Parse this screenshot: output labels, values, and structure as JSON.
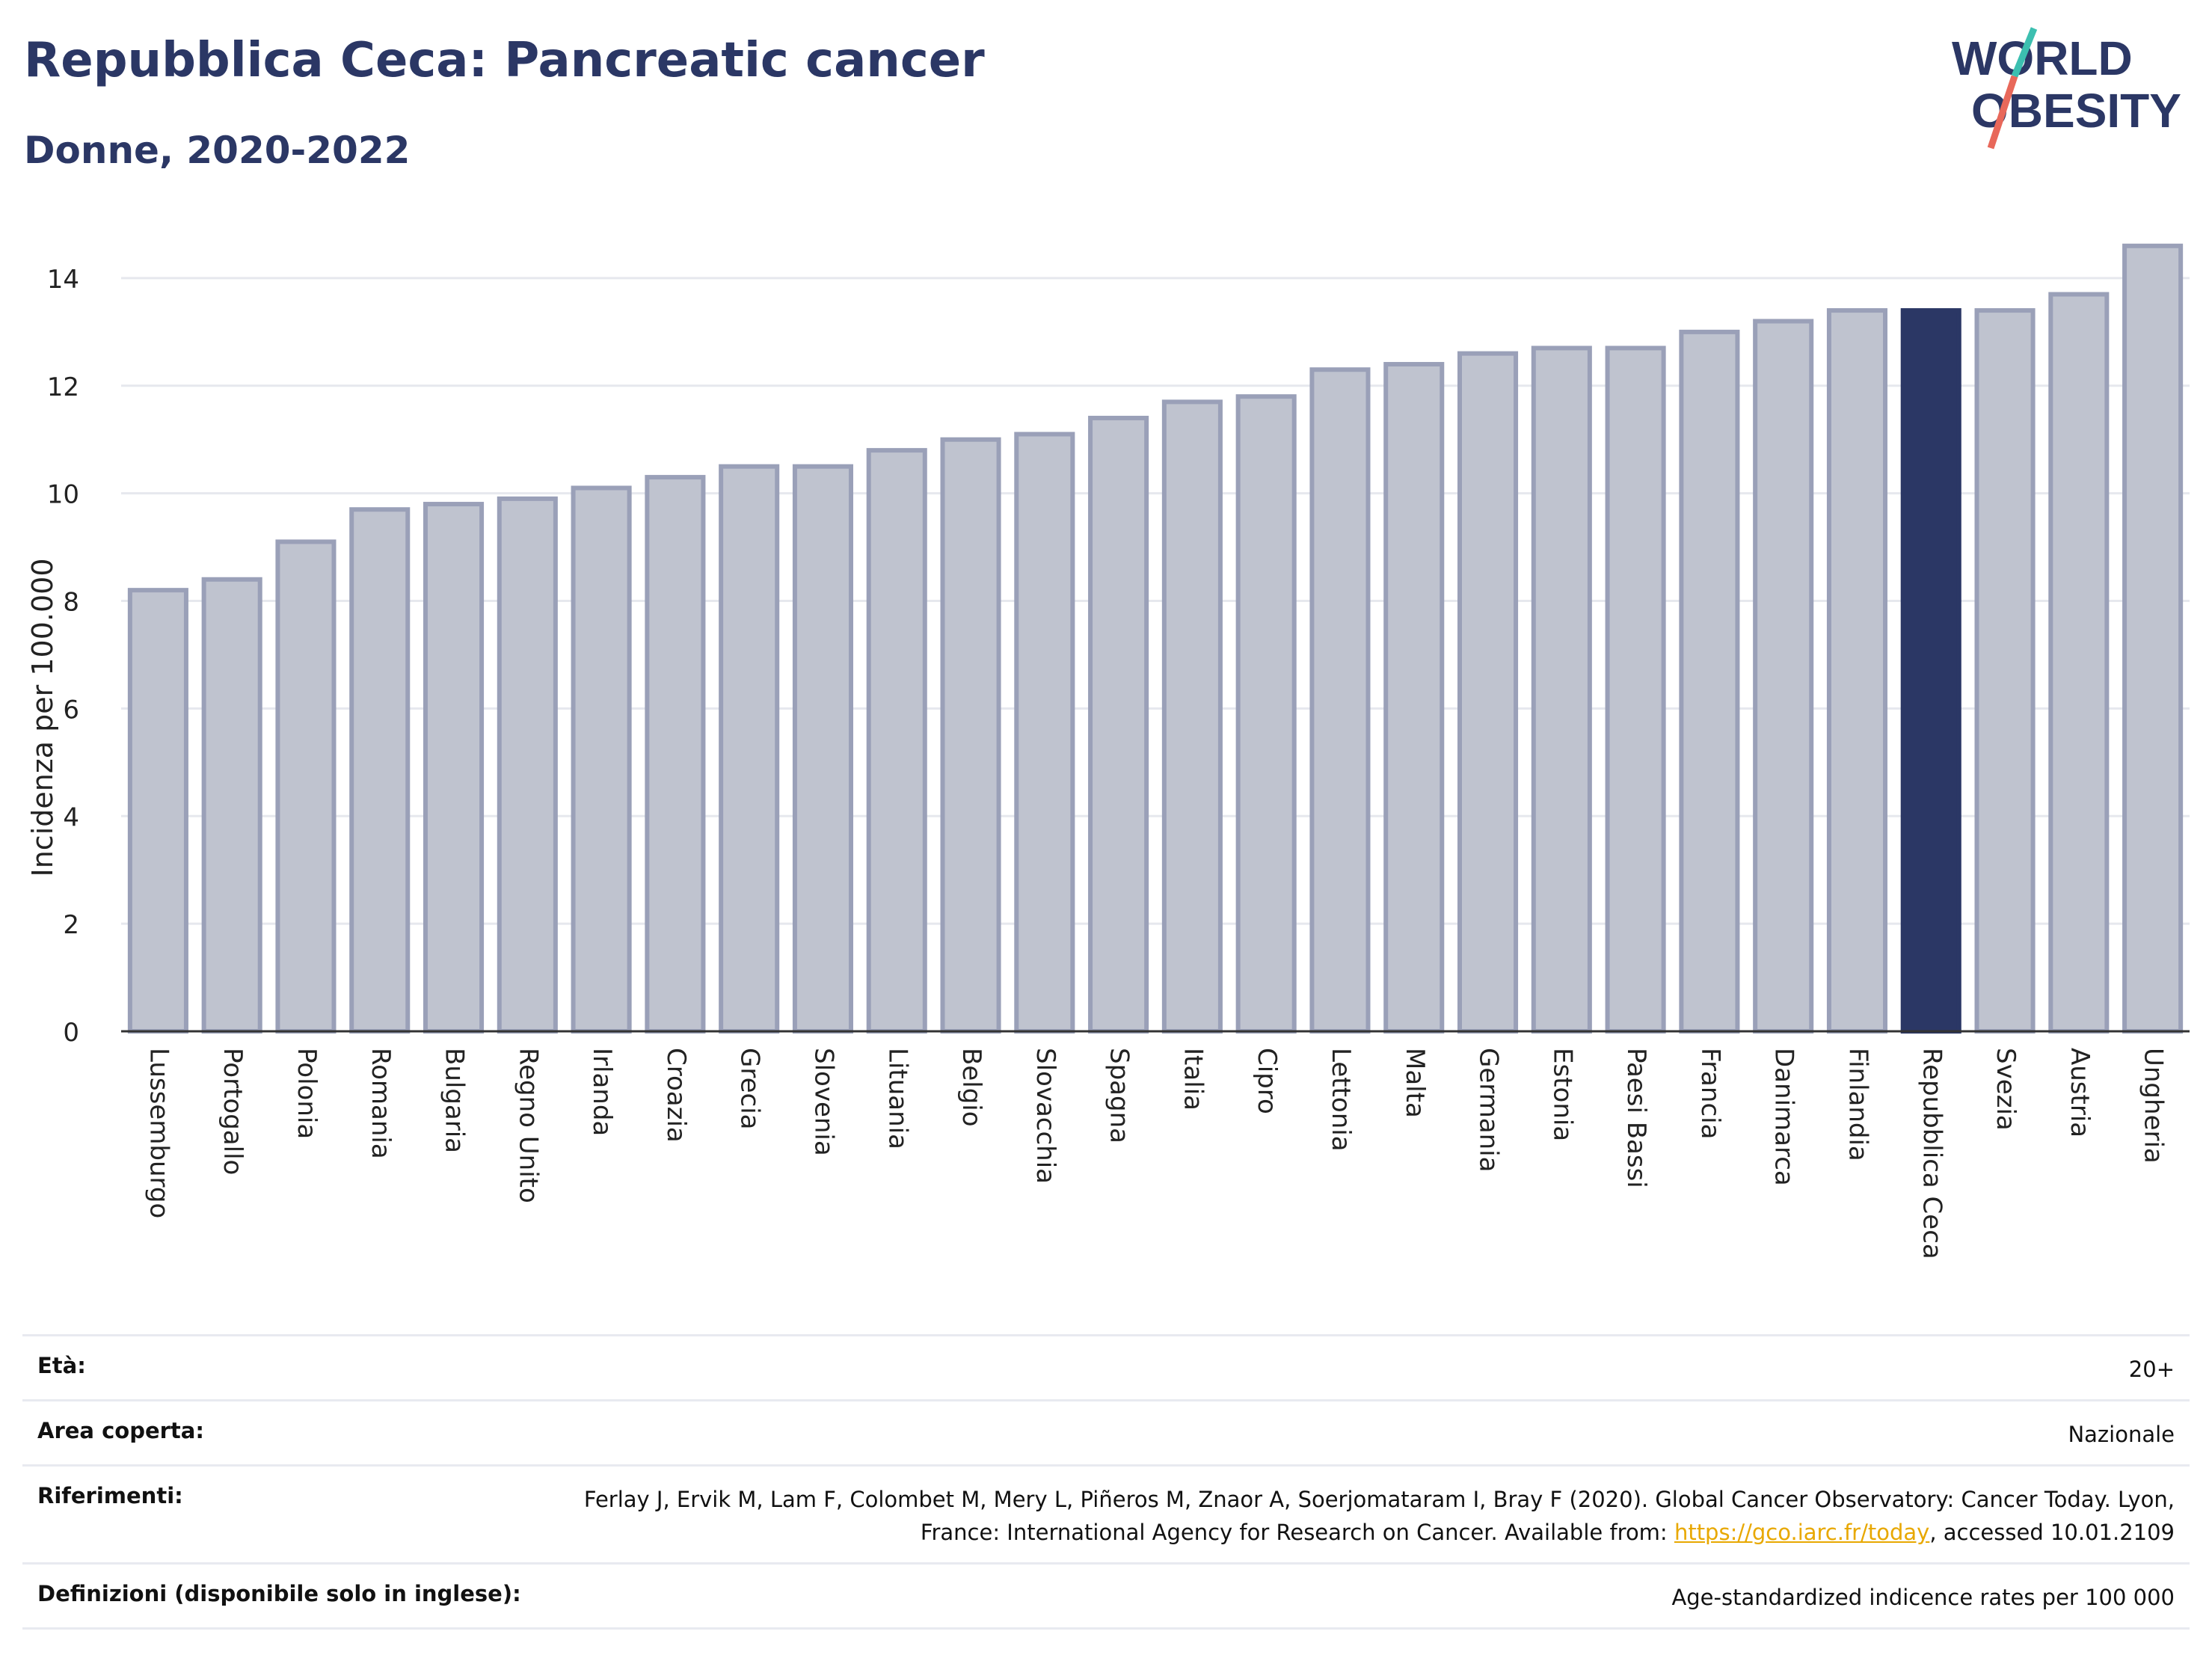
{
  "header": {
    "title": "Repubblica Ceca: Pancreatic cancer",
    "subtitle": "Donne, 2020-2022"
  },
  "logo": {
    "line1": "WORLD",
    "line2": "OBESITY"
  },
  "chart_data": {
    "type": "bar",
    "ylabel": "Incidenza per 100.000",
    "ylim": [
      0,
      15
    ],
    "yticks": [
      0,
      2,
      4,
      6,
      8,
      10,
      12,
      14
    ],
    "grid": true,
    "categories": [
      "Lussemburgo",
      "Portogallo",
      "Polonia",
      "Romania",
      "Bulgaria",
      "Regno Unito",
      "Irlanda",
      "Croazia",
      "Grecia",
      "Slovenia",
      "Lituania",
      "Belgio",
      "Slovacchia",
      "Spagna",
      "Italia",
      "Cipro",
      "Lettonia",
      "Malta",
      "Germania",
      "Estonia",
      "Paesi Bassi",
      "Francia",
      "Danimarca",
      "Finlandia",
      "Repubblica Ceca",
      "Svezia",
      "Austria",
      "Ungheria"
    ],
    "values": [
      8.2,
      8.4,
      9.1,
      9.7,
      9.8,
      9.9,
      10.1,
      10.3,
      10.5,
      10.5,
      10.8,
      11.0,
      11.1,
      11.4,
      11.7,
      11.8,
      12.3,
      12.4,
      12.6,
      12.7,
      12.7,
      13.0,
      13.2,
      13.4,
      13.4,
      13.4,
      13.7,
      14.6
    ],
    "highlight": "Repubblica Ceca",
    "colors": {
      "bar": "#bfc3cf",
      "bar_border": "#9aa0b8",
      "highlight": "#2b3765",
      "grid": "#e6e8ee",
      "axis": "#333333"
    }
  },
  "meta": {
    "age_label": "Età:",
    "age_value": "20+",
    "area_label": "Area coperta:",
    "area_value": "Nazionale",
    "refs_label": "Riferimenti:",
    "refs_text_1": "Ferlay J, Ervik M, Lam F, Colombet M, Mery L, Piñeros M, Znaor A, Soerjomataram I, Bray F (2020). Global Cancer Observatory: Cancer Today. Lyon, France: International Agency for Research on Cancer. Available from: ",
    "refs_link": "https://gco.iarc.fr/today",
    "refs_text_2": ", accessed 10.01.2109",
    "defs_label": "Definizioni (disponibile solo in inglese):",
    "defs_value": "Age-standardized indicence rates per 100 000"
  }
}
